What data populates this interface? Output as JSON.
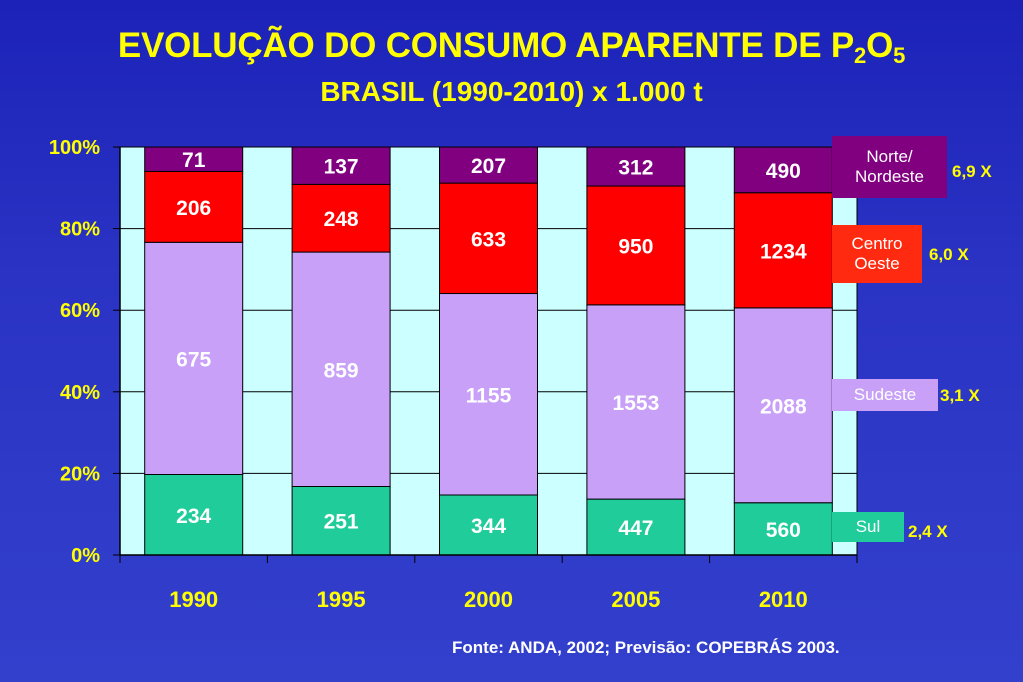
{
  "header": {
    "title_main": "EVOLUÇÃO DO CONSUMO APARENTE DE P",
    "title_sub1": "2",
    "title_mid": "O",
    "title_sub2": "5",
    "subtitle": "BRASIL (1990-2010) x 1.000 t"
  },
  "source": "Fonte: ANDA, 2002; Previsão: COPEBRÁS 2003.",
  "chart_data": {
    "type": "bar",
    "stacked": "percent",
    "categories": [
      "1990",
      "1995",
      "2000",
      "2005",
      "2010"
    ],
    "y_ticks": [
      "0%",
      "20%",
      "40%",
      "60%",
      "80%",
      "100%"
    ],
    "ylim": [
      0,
      100
    ],
    "grid": true,
    "series": [
      {
        "name": "Sul",
        "color": "#1fcc9a",
        "label_color": "#ffffff",
        "values": [
          234,
          251,
          344,
          447,
          560
        ]
      },
      {
        "name": "Sudeste",
        "color": "#c8a0f8",
        "label_color": "#ffffff",
        "values": [
          675,
          859,
          1155,
          1553,
          2088
        ]
      },
      {
        "name": "Centro Oeste",
        "color": "#ff0000",
        "label_color": "#ffffff",
        "values": [
          206,
          248,
          633,
          950,
          1234
        ]
      },
      {
        "name": "Norte/ Nordeste",
        "color": "#800080",
        "label_color": "#ffffff",
        "values": [
          71,
          137,
          207,
          312,
          490
        ]
      }
    ]
  },
  "legend": [
    {
      "key": "norte",
      "label": "Norte/ Nordeste",
      "growth": "6,9 X",
      "color": "#800080"
    },
    {
      "key": "centro",
      "label": "Centro Oeste",
      "growth": "6,0 X",
      "color": "#ff2a10"
    },
    {
      "key": "sudeste",
      "label": "Sudeste",
      "growth": "3,1 X",
      "color": "#c8a0f8"
    },
    {
      "key": "sul",
      "label": "Sul",
      "growth": "2,4 X",
      "color": "#1fcc9a"
    }
  ]
}
